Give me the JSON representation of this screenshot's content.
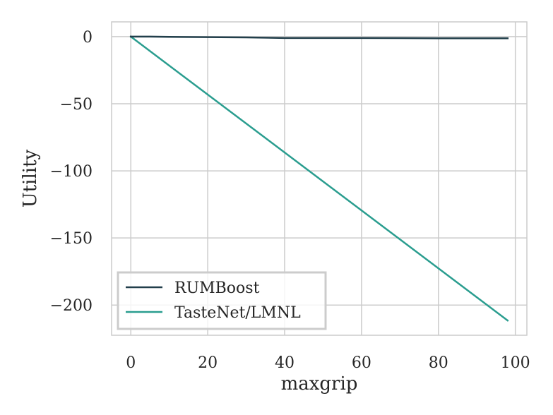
{
  "chart_data": {
    "type": "line",
    "xlabel": "maxgrip",
    "ylabel": "Utility",
    "xlim": [
      -5,
      103
    ],
    "ylim": [
      -222.5,
      11
    ],
    "xticks": [
      0,
      20,
      40,
      60,
      80,
      100
    ],
    "yticks": [
      0,
      -50,
      -100,
      -150,
      -200
    ],
    "xtick_labels": [
      "0",
      "20",
      "40",
      "60",
      "80",
      "100"
    ],
    "ytick_labels": [
      "0",
      "−50",
      "−100",
      "−150",
      "−200"
    ],
    "grid": true,
    "legend_position": "lower-left",
    "series": [
      {
        "name": "RUMBoost",
        "color": "#223f4b",
        "x": [
          0,
          5,
          10,
          20,
          30,
          40,
          50,
          60,
          70,
          80,
          90,
          98
        ],
        "y": [
          0,
          0,
          -0.2,
          -0.4,
          -0.6,
          -1,
          -1,
          -1,
          -1.1,
          -1.2,
          -1.2,
          -1.2
        ]
      },
      {
        "name": "TasteNet/LMNL",
        "color": "#2a9d8f",
        "x": [
          0,
          98
        ],
        "y": [
          0,
          -211.5
        ]
      }
    ]
  }
}
